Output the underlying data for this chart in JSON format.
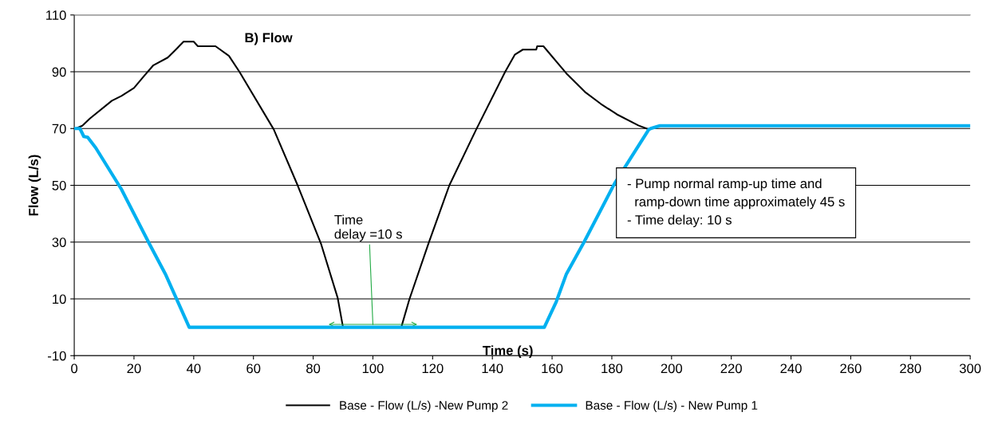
{
  "chart_data": {
    "type": "line",
    "title": "B) Flow",
    "xlabel": "Time (s)",
    "ylabel": "Flow (L/s)",
    "xlim": [
      0,
      300
    ],
    "xticks": [
      0,
      20,
      40,
      60,
      80,
      100,
      120,
      140,
      160,
      180,
      200,
      220,
      240,
      260,
      280,
      300
    ],
    "ylim": [
      -10,
      110
    ],
    "yticks": [
      -10,
      10,
      30,
      50,
      70,
      90,
      110
    ],
    "grid": "y",
    "legend": "bottom",
    "marker": "none",
    "line_style": "solid",
    "series": [
      {
        "name": "Base - Flow (L/s) -New Pump 2",
        "color": "#000000",
        "x": [
          0.5,
          2.7,
          5.3,
          12.6,
          15.8,
          20,
          23.2,
          26.4,
          31.3,
          34,
          36.6,
          40,
          41.4,
          47.3,
          51.8,
          55.3,
          66.8,
          74.8,
          82.6,
          88.2,
          90,
          106,
          109.5,
          112.2,
          118.6,
          125.6,
          134.6,
          144.3,
          147.5,
          150.2,
          154.7,
          155,
          157.1,
          164.8,
          171,
          176.3,
          181.7,
          188.9,
          192.4
        ],
        "values": [
          70,
          71,
          73.6,
          79.8,
          81.5,
          84.3,
          88.3,
          92.2,
          95,
          97.8,
          100.6,
          100.6,
          99,
          99,
          95.6,
          90,
          69.7,
          50,
          29.5,
          10.4,
          0,
          0,
          0,
          9.8,
          29.5,
          50,
          69.7,
          90,
          96,
          97.8,
          97.8,
          99,
          99,
          89.4,
          82.9,
          78.7,
          75,
          71.1,
          69.7
        ]
      },
      {
        "name": "Base - Flow (L/s) - New Pump 1",
        "color": "#00b0f0",
        "x": [
          0,
          1.9,
          3.2,
          4.5,
          7.2,
          15.8,
          25.1,
          30.5,
          38.5,
          157.4,
          161.4,
          164.8,
          170.7,
          180.9,
          192.4,
          193,
          196.1,
          300
        ],
        "values": [
          70,
          70,
          67.2,
          66.9,
          63.2,
          48.6,
          29.5,
          18.8,
          0,
          0,
          9,
          18.8,
          30,
          50.6,
          69.7,
          70,
          71,
          71
        ]
      }
    ],
    "annotations": [
      {
        "text": "Time\ndelay =10 s",
        "x": 100,
        "y": 1
      },
      "- Pump normal ramp-up time and\n  ramp-down time approximately 45 s\n- Time delay: 10 s"
    ]
  }
}
